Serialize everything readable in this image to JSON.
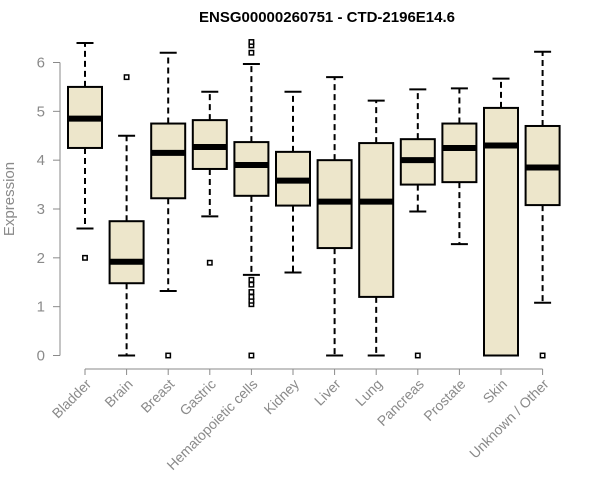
{
  "chart_data": {
    "type": "boxplot",
    "title": "ENSG00000260751 - CTD-2196E14.6",
    "xlabel": "",
    "ylabel": "Expression",
    "ylim": [
      0,
      6.4
    ],
    "yticks": [
      0,
      1,
      2,
      3,
      4,
      5,
      6
    ],
    "grid": false,
    "legend": "none",
    "box_color": "#ede6cb",
    "categories": [
      "Bladder",
      "Brain",
      "Breast",
      "Gastric",
      "Hematopoietic cells",
      "Kidney",
      "Liver",
      "Lung",
      "Pancreas",
      "Prostate",
      "Skin",
      "Unknown / Other"
    ],
    "boxes": [
      {
        "category": "Bladder",
        "whisker_low": 2.6,
        "q1": 4.25,
        "median": 4.85,
        "q3": 5.5,
        "whisker_high": 6.4,
        "outliers": [
          2.0
        ]
      },
      {
        "category": "Brain",
        "whisker_low": 0.0,
        "q1": 1.48,
        "median": 1.92,
        "q3": 2.75,
        "whisker_high": 4.5,
        "outliers": [
          5.7
        ]
      },
      {
        "category": "Breast",
        "whisker_low": 1.32,
        "q1": 3.22,
        "median": 4.15,
        "q3": 4.75,
        "whisker_high": 6.2,
        "outliers": [
          0.0
        ]
      },
      {
        "category": "Gastric",
        "whisker_low": 2.85,
        "q1": 3.82,
        "median": 4.27,
        "q3": 4.82,
        "whisker_high": 5.4,
        "outliers": [
          1.9
        ]
      },
      {
        "category": "Hematopoietic cells",
        "whisker_low": 1.65,
        "q1": 3.27,
        "median": 3.9,
        "q3": 4.37,
        "whisker_high": 5.97,
        "outliers": [
          0.0,
          1.05,
          1.12,
          1.2,
          1.3,
          1.45,
          1.55,
          6.2,
          6.35,
          6.42
        ]
      },
      {
        "category": "Kidney",
        "whisker_low": 1.7,
        "q1": 3.07,
        "median": 3.58,
        "q3": 4.17,
        "whisker_high": 5.4,
        "outliers": []
      },
      {
        "category": "Liver",
        "whisker_low": 0.0,
        "q1": 2.2,
        "median": 3.15,
        "q3": 4.0,
        "whisker_high": 5.7,
        "outliers": []
      },
      {
        "category": "Lung",
        "whisker_low": 0.0,
        "q1": 1.2,
        "median": 3.15,
        "q3": 4.35,
        "whisker_high": 5.22,
        "outliers": []
      },
      {
        "category": "Pancreas",
        "whisker_low": 2.95,
        "q1": 3.5,
        "median": 4.0,
        "q3": 4.43,
        "whisker_high": 5.45,
        "outliers": [
          0.0
        ]
      },
      {
        "category": "Prostate",
        "whisker_low": 2.28,
        "q1": 3.55,
        "median": 4.25,
        "q3": 4.75,
        "whisker_high": 5.47,
        "outliers": []
      },
      {
        "category": "Skin",
        "whisker_low": 0.0,
        "q1": 0.0,
        "median": 4.3,
        "q3": 5.07,
        "whisker_high": 5.67,
        "outliers": []
      },
      {
        "category": "Unknown / Other",
        "whisker_low": 1.08,
        "q1": 3.08,
        "median": 3.85,
        "q3": 4.7,
        "whisker_high": 6.22,
        "outliers": [
          0.0
        ]
      }
    ]
  }
}
